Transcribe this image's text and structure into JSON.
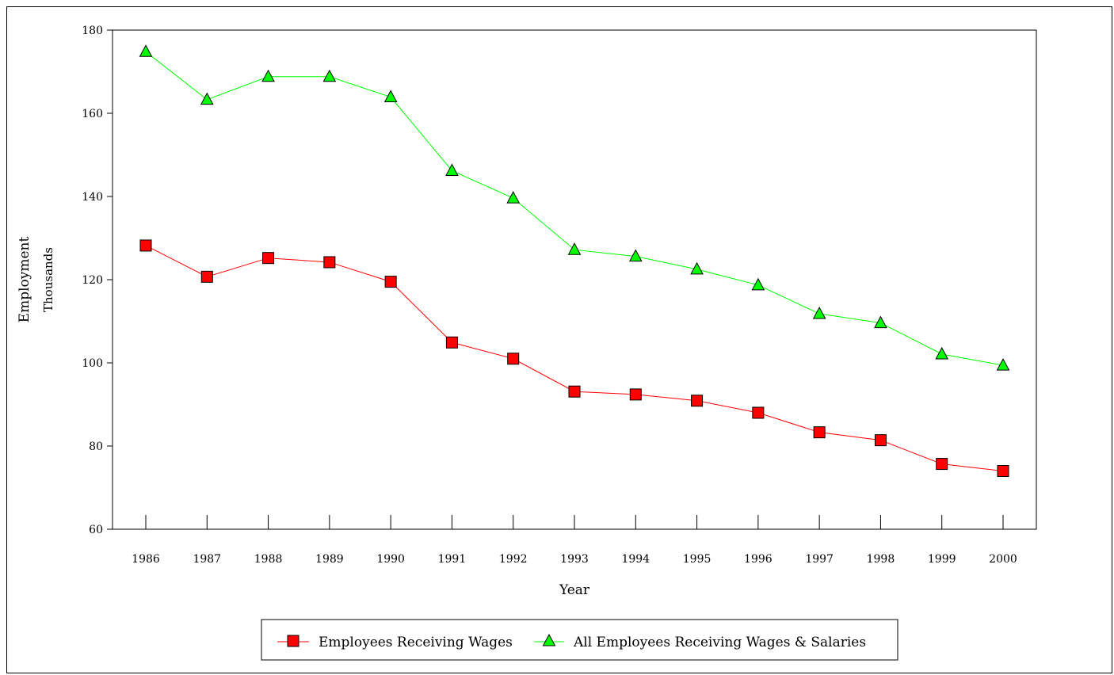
{
  "chart_data": {
    "type": "line",
    "title": "",
    "xlabel": "Year",
    "ylabel": "Employment",
    "ylabel_sub": "Thousands",
    "ylim": [
      60,
      180
    ],
    "yticks": [
      60,
      80,
      100,
      120,
      140,
      160,
      180
    ],
    "categories": [
      "1986",
      "1987",
      "1988",
      "1989",
      "1990",
      "1991",
      "1992",
      "1993",
      "1994",
      "1995",
      "1996",
      "1997",
      "1998",
      "1999",
      "2000"
    ],
    "grid": false,
    "legend_position": "bottom",
    "series": [
      {
        "name": "Employees Receiving Wages",
        "color": "#ff0000",
        "marker": "square",
        "values": [
          128.2,
          120.7,
          125.2,
          124.2,
          119.5,
          104.9,
          101.0,
          93.1,
          92.4,
          90.9,
          88.0,
          83.3,
          81.4,
          75.7,
          74.0
        ]
      },
      {
        "name": "All Employees Receiving Wages & Salaries",
        "color": "#00ff00",
        "marker": "triangle",
        "values": [
          174.8,
          163.3,
          168.8,
          168.8,
          163.9,
          146.2,
          139.6,
          127.2,
          125.6,
          122.5,
          118.7,
          111.8,
          109.6,
          102.1,
          99.4
        ]
      }
    ]
  }
}
